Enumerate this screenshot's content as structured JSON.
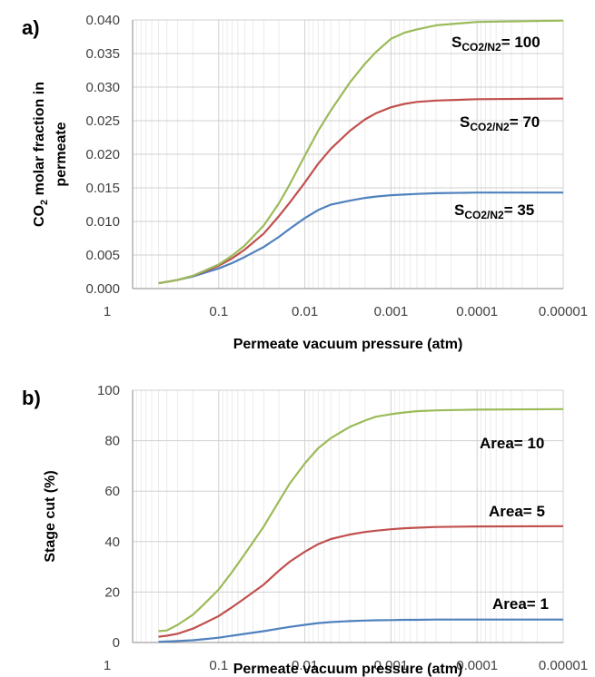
{
  "chart_data": [
    {
      "type": "line",
      "panel_label": "a)",
      "xlabel": "Permeate vacuum  pressure (atm)",
      "ylabel_line1_prefix": "CO",
      "ylabel_line1_sub": "2",
      "ylabel_line1_suffix": " molar fraction in",
      "ylabel_line2": "permeate",
      "x_scale": "log-reversed",
      "xlim": [
        1,
        1e-05
      ],
      "ylim": [
        0,
        0.04
      ],
      "x_ticks": [
        "1",
        "0.1",
        "0.01",
        "0.001",
        "0.0001",
        "0.00001"
      ],
      "y_ticks": [
        "0.000",
        "0.005",
        "0.010",
        "0.015",
        "0.020",
        "0.025",
        "0.030",
        "0.035",
        "0.040"
      ],
      "x": [
        0.5,
        0.4,
        0.3,
        0.2,
        0.15,
        0.1,
        0.07,
        0.05,
        0.03,
        0.02,
        0.015,
        0.01,
        0.007,
        0.005,
        0.003,
        0.002,
        0.0015,
        0.001,
        0.0007,
        0.0005,
        0.0003,
        0.0001,
        1e-05
      ],
      "series": [
        {
          "label_prefix": "S",
          "label_sub": "CO2/N2",
          "label_suffix": "= 35",
          "color": "#4F81BD",
          "values": [
            0.0008,
            0.001,
            0.0013,
            0.0018,
            0.0023,
            0.003,
            0.0038,
            0.0047,
            0.0062,
            0.0077,
            0.0089,
            0.0105,
            0.0117,
            0.0125,
            0.0131,
            0.0135,
            0.0137,
            0.0139,
            0.014,
            0.0141,
            0.0142,
            0.0143,
            0.0143
          ]
        },
        {
          "label_prefix": "S",
          "label_sub": "CO2/N2",
          "label_suffix": "= 70",
          "color": "#C0504D",
          "values": [
            0.0008,
            0.001,
            0.0013,
            0.0019,
            0.0025,
            0.0034,
            0.0045,
            0.0058,
            0.0082,
            0.0108,
            0.0128,
            0.0158,
            0.0186,
            0.0208,
            0.0235,
            0.0252,
            0.0261,
            0.027,
            0.0275,
            0.0278,
            0.028,
            0.0282,
            0.0283
          ]
        },
        {
          "label_prefix": "S",
          "label_sub": "CO2/N2",
          "label_suffix": "= 100",
          "color": "#9BBB59",
          "values": [
            0.0008,
            0.001,
            0.0013,
            0.0019,
            0.0026,
            0.0036,
            0.0049,
            0.0064,
            0.0094,
            0.0127,
            0.0155,
            0.0198,
            0.0235,
            0.0265,
            0.0307,
            0.0335,
            0.0352,
            0.0372,
            0.0381,
            0.0386,
            0.0392,
            0.0397,
            0.0399
          ]
        }
      ]
    },
    {
      "type": "line",
      "panel_label": "b)",
      "xlabel": "Permeate vacuum  pressure (atm)",
      "ylabel": "Stage cut (%)",
      "x_scale": "log-reversed",
      "xlim": [
        1,
        1e-05
      ],
      "ylim": [
        0,
        100
      ],
      "x_ticks": [
        "1",
        "0.1",
        "0.01",
        "0.001",
        "0.0001",
        "0.00001"
      ],
      "y_ticks": [
        "0",
        "20",
        "40",
        "60",
        "80",
        "100"
      ],
      "x": [
        0.5,
        0.4,
        0.3,
        0.2,
        0.15,
        0.1,
        0.07,
        0.05,
        0.03,
        0.02,
        0.015,
        0.01,
        0.007,
        0.005,
        0.003,
        0.002,
        0.0015,
        0.001,
        0.0007,
        0.0005,
        0.0003,
        0.0001,
        1e-05
      ],
      "series": [
        {
          "label": "Area= 1",
          "color": "#4F81BD",
          "values": [
            0.3,
            0.4,
            0.6,
            0.9,
            1.3,
            1.9,
            2.7,
            3.4,
            4.5,
            5.5,
            6.2,
            7.0,
            7.7,
            8.1,
            8.5,
            8.7,
            8.8,
            8.9,
            9.0,
            9.0,
            9.1,
            9.1,
            9.1
          ]
        },
        {
          "label": "Area= 5",
          "color": "#C0504D",
          "values": [
            2.3,
            2.7,
            3.5,
            5.5,
            7.5,
            10.5,
            14,
            17.5,
            23,
            28.5,
            32,
            36,
            39,
            41,
            42.8,
            43.8,
            44.3,
            44.9,
            45.3,
            45.5,
            45.8,
            46.0,
            46.1
          ]
        },
        {
          "label": "Area= 10",
          "color": "#9BBB59",
          "values": [
            4.5,
            4.8,
            7,
            11,
            15,
            21,
            28,
            35,
            46,
            56,
            63,
            71,
            77,
            81,
            85.5,
            88,
            89.5,
            90.5,
            91.2,
            91.7,
            92,
            92.3,
            92.5
          ]
        }
      ]
    }
  ]
}
